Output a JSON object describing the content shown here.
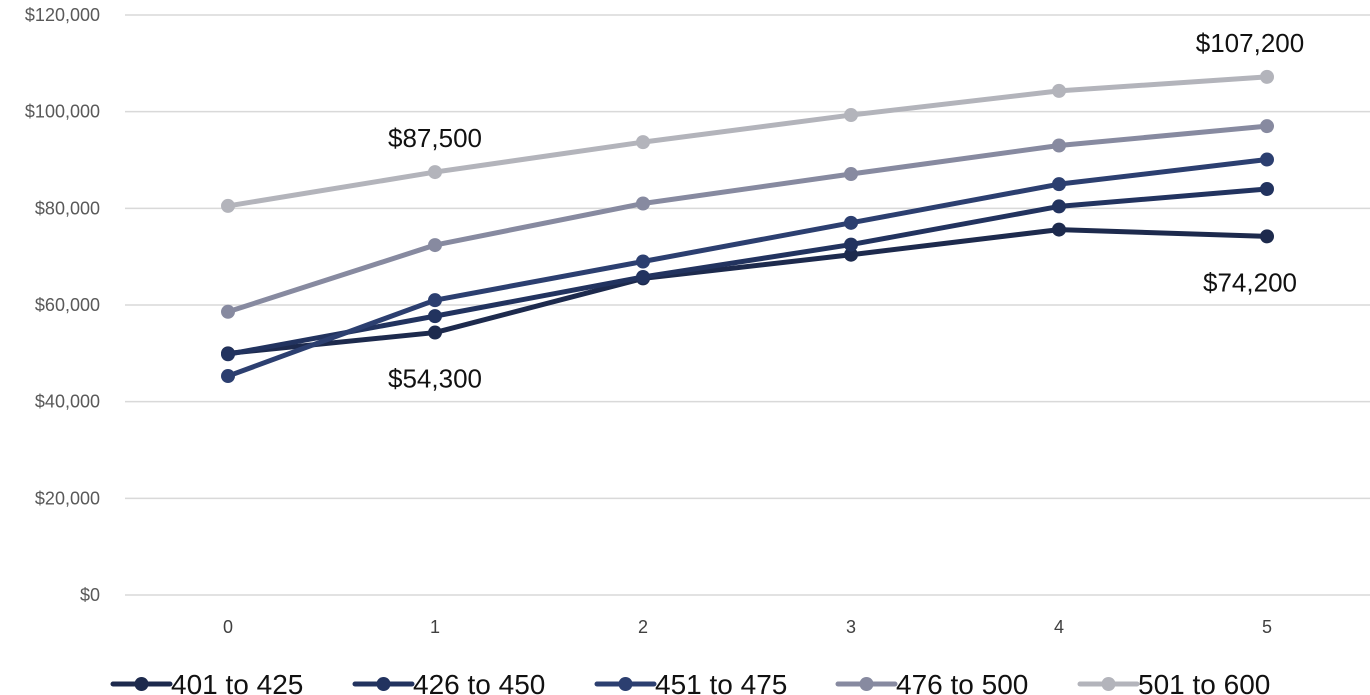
{
  "chart_data": {
    "type": "line",
    "x": [
      0,
      1,
      2,
      3,
      4,
      5
    ],
    "ylim": [
      0,
      120000
    ],
    "y_ticks": [
      0,
      20000,
      40000,
      60000,
      80000,
      100000,
      120000
    ],
    "y_tick_labels": [
      "$0",
      "$20,000",
      "$40,000",
      "$60,000",
      "$80,000",
      "$100,000",
      "$120,000"
    ],
    "x_tick_labels": [
      "0",
      "1",
      "2",
      "3",
      "4",
      "5"
    ],
    "grid": "horizontal",
    "legend_position": "bottom",
    "series": [
      {
        "name": "401 to 425",
        "color": "#1d2a4d",
        "values": [
          50000,
          54300,
          65500,
          70400,
          75600,
          74200
        ]
      },
      {
        "name": "426 to 450",
        "color": "#22335f",
        "values": [
          49800,
          57700,
          65800,
          72500,
          80400,
          84000
        ]
      },
      {
        "name": "451 to 475",
        "color": "#2c3f70",
        "values": [
          45300,
          61000,
          69000,
          77000,
          85000,
          90100
        ]
      },
      {
        "name": "476 to 500",
        "color": "#878aa0",
        "values": [
          58600,
          72400,
          81000,
          87100,
          93000,
          97000
        ]
      },
      {
        "name": "501 to 600",
        "color": "#b3b4bb",
        "values": [
          80500,
          87500,
          93700,
          99300,
          104300,
          107200
        ]
      }
    ],
    "annotations": [
      {
        "text": "$87,500",
        "series": 4,
        "x": 1,
        "anchor": "above"
      },
      {
        "text": "$54,300",
        "series": 0,
        "x": 1,
        "anchor": "below"
      },
      {
        "text": "$107,200",
        "series": 4,
        "x": 5,
        "anchor": "above"
      },
      {
        "text": "$74,200",
        "series": 0,
        "x": 5,
        "anchor": "below"
      }
    ]
  }
}
